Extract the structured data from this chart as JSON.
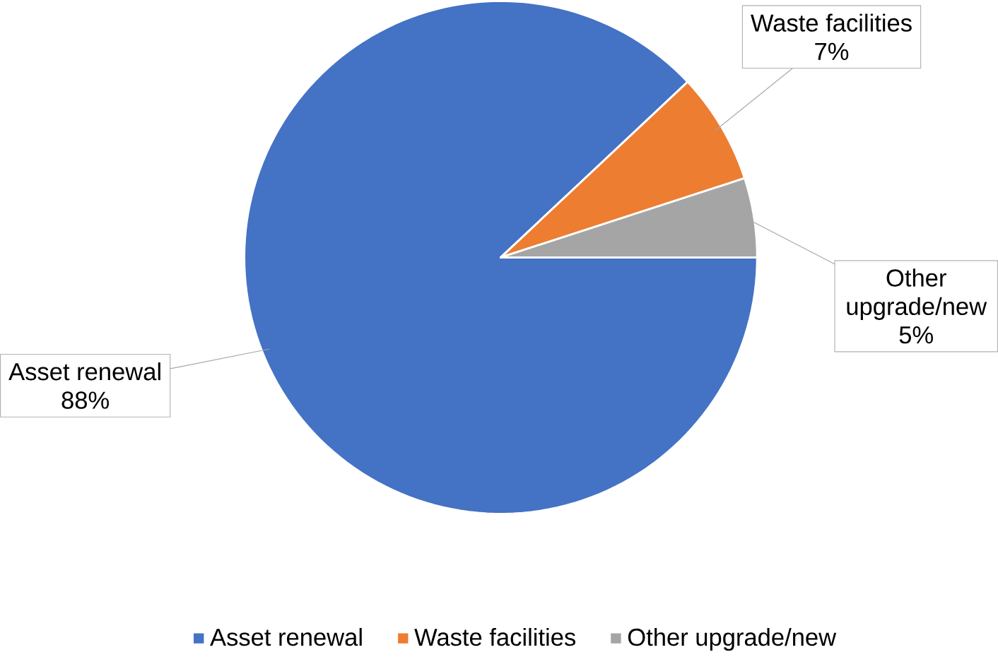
{
  "chart_data": {
    "type": "pie",
    "categories": [
      "Asset renewal",
      "Waste facilities",
      "Other upgrade/new"
    ],
    "values": [
      88,
      7,
      5
    ],
    "colors": [
      "#4472c4",
      "#ed7d31",
      "#a5a5a5"
    ],
    "data_labels": true,
    "value_labels": [
      "88%",
      "7%",
      "5%"
    ],
    "legend": "bottom"
  }
}
